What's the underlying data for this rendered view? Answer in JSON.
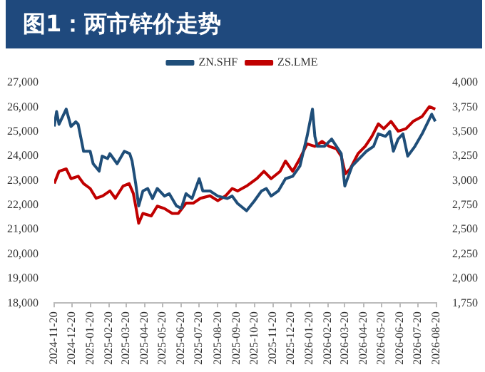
{
  "chart_data": {
    "type": "line",
    "title": "图1：两市锌价走势",
    "xlim": [
      "2024-11-20",
      "2026-08-20"
    ],
    "xticks": [
      "2024-11-20",
      "2024-12-20",
      "2025-01-20",
      "2025-02-20",
      "2025-03-20",
      "2025-04-20",
      "2025-05-20",
      "2025-06-20",
      "2025-07-20",
      "2025-08-20",
      "2025-09-20",
      "2025-10-20",
      "2025-11-20",
      "2025-12-20",
      "2026-01-20",
      "2026-02-20",
      "2026-03-20",
      "2026-04-20",
      "2026-05-20",
      "2026-06-20",
      "2026-07-20",
      "2026-08-20"
    ],
    "ylim": [
      18000,
      27000
    ],
    "yticks": [
      {
        "value": 18000,
        "label": "18,000"
      },
      {
        "value": 19000,
        "label": "19,000"
      },
      {
        "value": 20000,
        "label": "20,000"
      },
      {
        "value": 21000,
        "label": "21,000"
      },
      {
        "value": 22000,
        "label": "22,000"
      },
      {
        "value": 23000,
        "label": "23,000"
      },
      {
        "value": 24000,
        "label": "24,000"
      },
      {
        "value": 25000,
        "label": "25,000"
      },
      {
        "value": 26000,
        "label": "26,000"
      },
      {
        "value": 27000,
        "label": "27,000"
      }
    ],
    "y2lim": [
      1750,
      4000
    ],
    "y2ticks": [
      {
        "value": 1750,
        "label": "1,750"
      },
      {
        "value": 2000,
        "label": "2,000"
      },
      {
        "value": 2250,
        "label": "2,250"
      },
      {
        "value": 2500,
        "label": "2,500"
      },
      {
        "value": 2750,
        "label": "2,750"
      },
      {
        "value": 3000,
        "label": "3,000"
      },
      {
        "value": 3250,
        "label": "3,250"
      },
      {
        "value": 3500,
        "label": "3,500"
      },
      {
        "value": 3750,
        "label": "3,750"
      },
      {
        "value": 4000,
        "label": "4,000"
      }
    ],
    "legend": "top",
    "grid": false,
    "series": [
      {
        "name": "ZN.SHF",
        "color": "#1f4e79",
        "x": [
          "2024-11-20",
          "2024-11-24",
          "2024-11-28",
          "2024-12-10",
          "2024-12-18",
          "2024-12-26",
          "2024-12-30",
          "2025-01-08",
          "2025-01-19",
          "2025-01-24",
          "2025-02-03",
          "2025-02-08",
          "2025-02-17",
          "2025-02-21",
          "2025-03-05",
          "2025-03-17",
          "2025-03-26",
          "2025-03-30",
          "2025-04-05",
          "2025-04-10",
          "2025-04-17",
          "2025-04-25",
          "2025-05-03",
          "2025-05-11",
          "2025-05-23",
          "2025-05-31",
          "2025-06-12",
          "2025-06-20",
          "2025-06-28",
          "2025-07-08",
          "2025-07-20",
          "2025-07-26",
          "2025-08-07",
          "2025-08-20",
          "2025-09-05",
          "2025-09-13",
          "2025-09-22",
          "2025-10-07",
          "2025-10-20",
          "2025-11-01",
          "2025-11-09",
          "2025-11-17",
          "2025-11-29",
          "2025-12-11",
          "2025-12-23",
          "2026-01-04",
          "2026-01-12",
          "2026-01-16",
          "2026-01-25",
          "2026-01-29",
          "2026-02-02",
          "2026-02-14",
          "2026-02-26",
          "2026-03-06",
          "2026-03-14",
          "2026-03-20",
          "2026-03-23",
          "2026-04-01",
          "2026-04-13",
          "2026-04-25",
          "2026-05-07",
          "2026-05-15",
          "2026-05-27",
          "2026-06-03",
          "2026-06-09",
          "2026-06-17",
          "2026-06-25",
          "2026-07-03",
          "2026-07-15",
          "2026-07-27",
          "2026-08-04",
          "2026-08-12",
          "2026-08-18"
        ],
        "values": [
          25210,
          25820,
          25300,
          25920,
          25210,
          25400,
          25300,
          24200,
          24200,
          23690,
          23390,
          24000,
          23900,
          24100,
          23690,
          24200,
          24100,
          23800,
          22880,
          21970,
          22580,
          22680,
          22270,
          22680,
          22370,
          22470,
          21970,
          21870,
          22470,
          22270,
          23080,
          22580,
          22580,
          22370,
          22270,
          22370,
          22070,
          21770,
          22170,
          22580,
          22680,
          22370,
          22580,
          23080,
          23180,
          23590,
          24400,
          24810,
          25920,
          24810,
          24400,
          24400,
          24700,
          24400,
          24100,
          22780,
          22990,
          23590,
          23900,
          24200,
          24400,
          24910,
          24810,
          25010,
          24200,
          24700,
          24910,
          24000,
          24400,
          24910,
          25310,
          25710,
          25420
        ]
      },
      {
        "name": "ZS.LME",
        "color": "#c00000",
        "axis": "y2",
        "x": [
          "2024-11-20",
          "2024-11-28",
          "2024-12-10",
          "2024-12-18",
          "2024-12-30",
          "2025-01-08",
          "2025-01-19",
          "2025-01-29",
          "2025-02-09",
          "2025-02-21",
          "2025-03-02",
          "2025-03-15",
          "2025-03-25",
          "2025-04-01",
          "2025-04-05",
          "2025-04-10",
          "2025-04-17",
          "2025-05-01",
          "2025-05-11",
          "2025-05-23",
          "2025-06-05",
          "2025-06-15",
          "2025-06-28",
          "2025-07-10",
          "2025-07-22",
          "2025-08-07",
          "2025-08-20",
          "2025-09-02",
          "2025-09-13",
          "2025-09-22",
          "2025-10-07",
          "2025-10-24",
          "2025-11-05",
          "2025-11-17",
          "2025-12-02",
          "2025-12-11",
          "2025-12-23",
          "2026-01-04",
          "2026-01-16",
          "2026-01-29",
          "2026-02-10",
          "2026-02-22",
          "2026-03-06",
          "2026-03-14",
          "2026-03-21",
          "2026-03-29",
          "2026-04-11",
          "2026-04-23",
          "2026-05-04",
          "2026-05-15",
          "2026-05-24",
          "2026-06-05",
          "2026-06-17",
          "2026-06-30",
          "2026-07-12",
          "2026-07-27",
          "2026-08-08",
          "2026-08-18"
        ],
        "values": [
          2970,
          3095,
          3120,
          3020,
          3045,
          2970,
          2920,
          2820,
          2845,
          2895,
          2820,
          2945,
          2970,
          2870,
          2740,
          2565,
          2665,
          2640,
          2740,
          2715,
          2665,
          2665,
          2770,
          2770,
          2820,
          2845,
          2795,
          2845,
          2920,
          2895,
          2945,
          3020,
          3095,
          3020,
          3095,
          3200,
          3095,
          3225,
          3375,
          3350,
          3400,
          3350,
          3325,
          3250,
          3070,
          3120,
          3275,
          3350,
          3450,
          3580,
          3530,
          3605,
          3505,
          3530,
          3605,
          3655,
          3755,
          3730
        ]
      }
    ]
  }
}
